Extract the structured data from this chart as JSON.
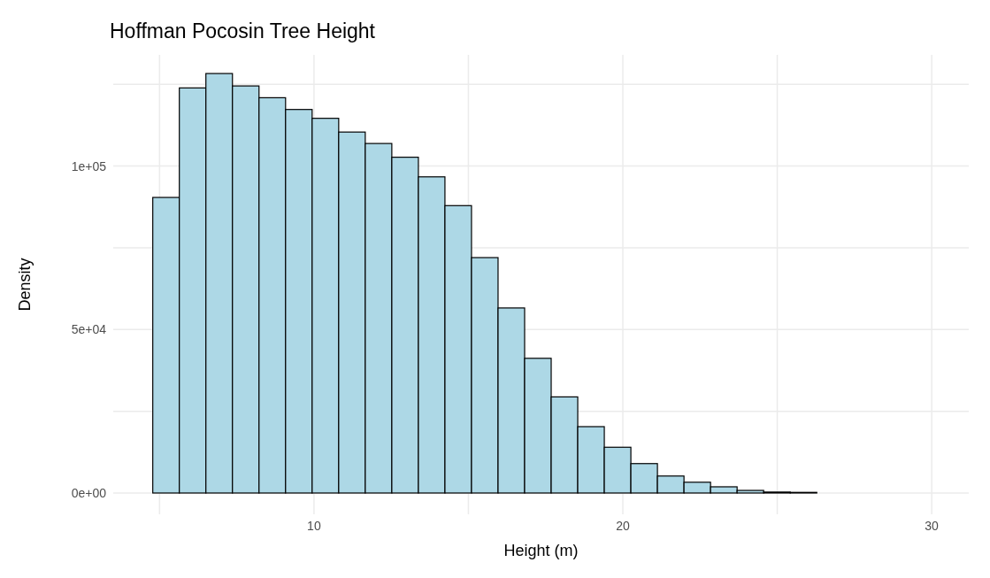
{
  "chart_data": {
    "type": "histogram",
    "title": "Hoffman Pocosin Tree Height",
    "xlabel": "Height (m)",
    "ylabel": "Density",
    "bins": [
      4.78,
      5.64,
      6.5,
      7.36,
      8.22,
      9.08,
      9.94,
      10.8,
      11.66,
      12.52,
      13.38,
      14.24,
      15.1,
      15.96,
      16.82,
      17.68,
      18.54,
      19.4,
      20.26,
      21.12,
      21.98,
      22.84,
      23.7,
      24.56,
      25.42,
      26.28,
      27.14,
      28.0,
      28.86,
      29.72,
      30.58
    ],
    "values": [
      90400,
      123900,
      128300,
      124500,
      120900,
      117300,
      114600,
      110400,
      106900,
      102700,
      96700,
      87900,
      72000,
      56600,
      41200,
      29400,
      20300,
      14000,
      9000,
      5200,
      3300,
      1900,
      800,
      300,
      200,
      null,
      null,
      null,
      null,
      null
    ],
    "color": "#add8e6",
    "xlim": [
      3.5,
      31.2
    ],
    "xticks": [
      {
        "value": 5,
        "label": null
      },
      10,
      {
        "value": 15,
        "label": null
      },
      20,
      {
        "value": 25,
        "label": null
      },
      30
    ],
    "ylim": [
      -6500,
      134000
    ],
    "yticks": [
      {
        "value": 0,
        "label": "0e+00"
      },
      {
        "value": 25000,
        "label": null
      },
      {
        "value": 50000,
        "label": "5e+04"
      },
      {
        "value": 75000,
        "label": null
      },
      {
        "value": 100000,
        "label": "1e+05"
      },
      {
        "value": 125000,
        "label": null
      }
    ],
    "grid": true
  }
}
